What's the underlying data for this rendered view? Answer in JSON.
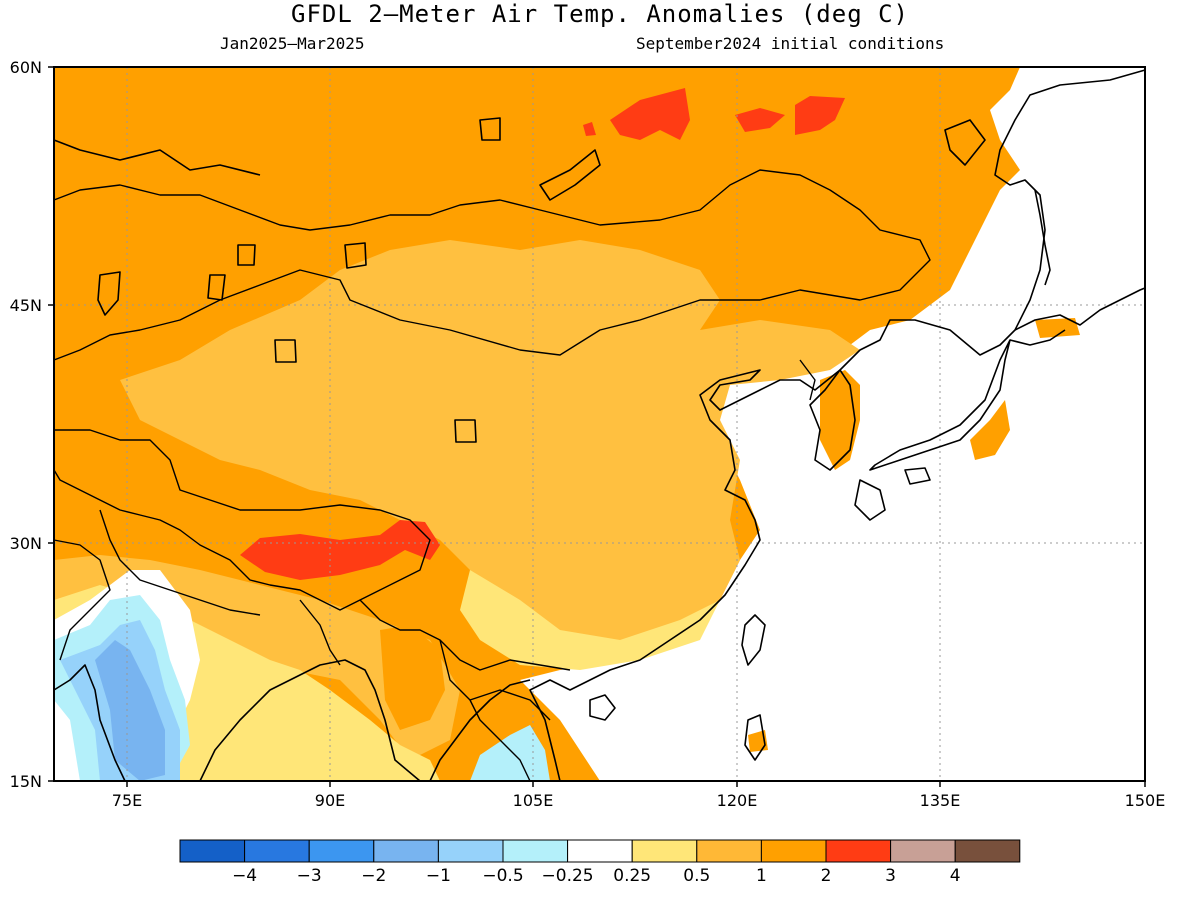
{
  "title": "GFDL 2—Meter Air Temp. Anomalies (deg C)",
  "period": "Jan2025—Mar2025",
  "init": "September2024 initial conditions",
  "lat_labels": [
    "60N",
    "45N",
    "30N",
    "15N"
  ],
  "lon_labels": [
    "75E",
    "90E",
    "105E",
    "120E",
    "135E",
    "150E"
  ],
  "legend": {
    "colors": [
      "#1460c8",
      "#2878e0",
      "#3c96f0",
      "#78b4f0",
      "#96d2fa",
      "#b4f0fa",
      "#ffffff",
      "#ffe678",
      "#ffb836",
      "#ffa000",
      "#ff3c14",
      "#c8a096",
      "#78503c"
    ],
    "labels": [
      "−4",
      "−3",
      "−2",
      "−1",
      "−0.5",
      "−0.25",
      "0.25",
      "0.5",
      "1",
      "2",
      "3",
      "4"
    ]
  }
}
